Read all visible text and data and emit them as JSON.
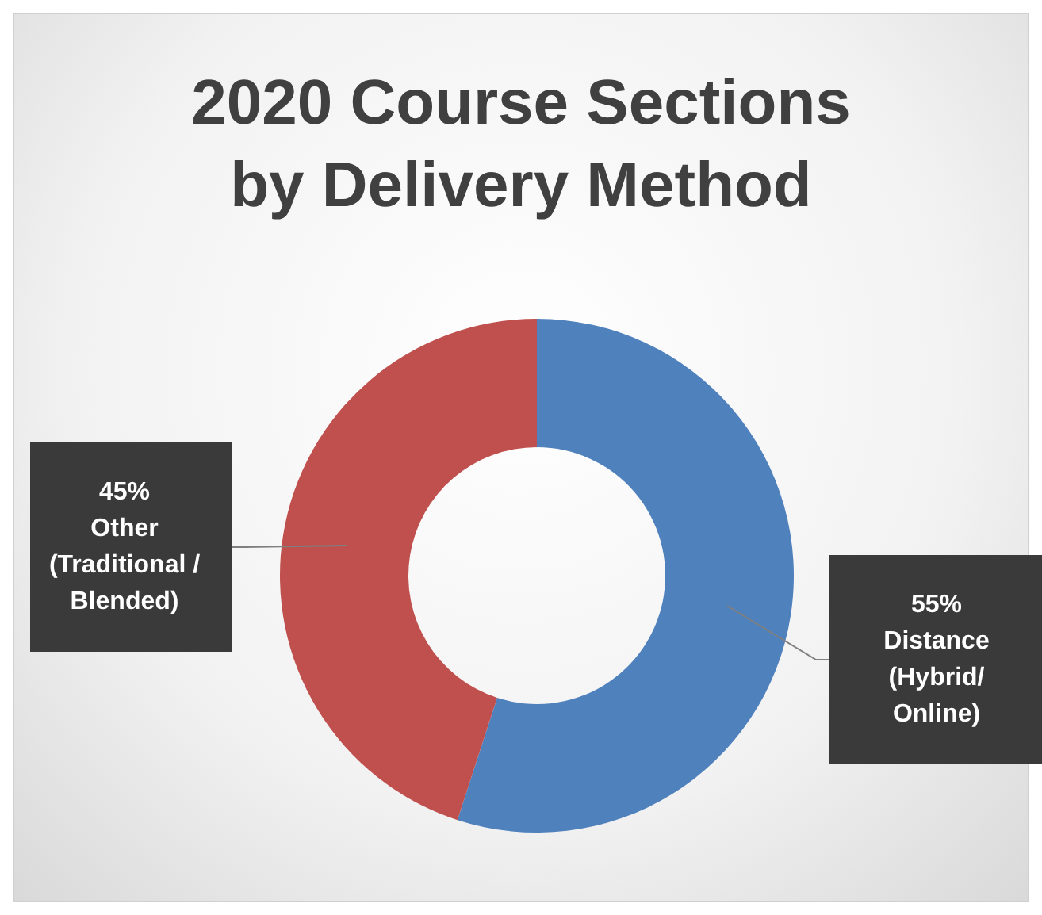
{
  "chart_data": {
    "type": "donut",
    "title": "2020 Course Sections by Delivery Method",
    "categories": [
      "Distance (Hybrid/ Online)",
      "Other (Traditional / Blended)"
    ],
    "values": [
      55,
      45
    ],
    "colors": [
      "#4f81bd",
      "#c0504d"
    ],
    "value_labels": [
      "55%",
      "45%"
    ],
    "legend": false
  }
}
